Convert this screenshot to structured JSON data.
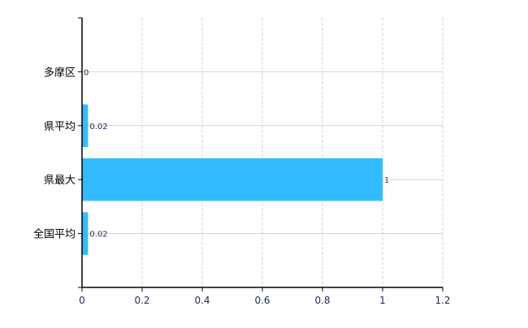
{
  "chart_data": {
    "type": "bar",
    "orientation": "horizontal",
    "categories": [
      "多摩区",
      "県平均",
      "県最大",
      "全国平均"
    ],
    "values": [
      0,
      0.02,
      1,
      0.02
    ],
    "data_labels": [
      "0",
      "0.02",
      "1",
      "0.02"
    ],
    "data_label_colors": [
      "#1a2a5a",
      "#1a2a5a",
      "#8b1a1a",
      "#1a2a5a"
    ],
    "xlim": [
      0,
      1.2
    ],
    "xticks": [
      "0",
      "0.2",
      "0.4",
      "0.6",
      "0.8",
      "1",
      "1.2"
    ],
    "xtick_values": [
      0,
      0.2,
      0.4,
      0.6,
      0.8,
      1,
      1.2
    ],
    "title": "",
    "xlabel": "",
    "ylabel": "",
    "grid": true,
    "bar_color": "#33bbff"
  }
}
